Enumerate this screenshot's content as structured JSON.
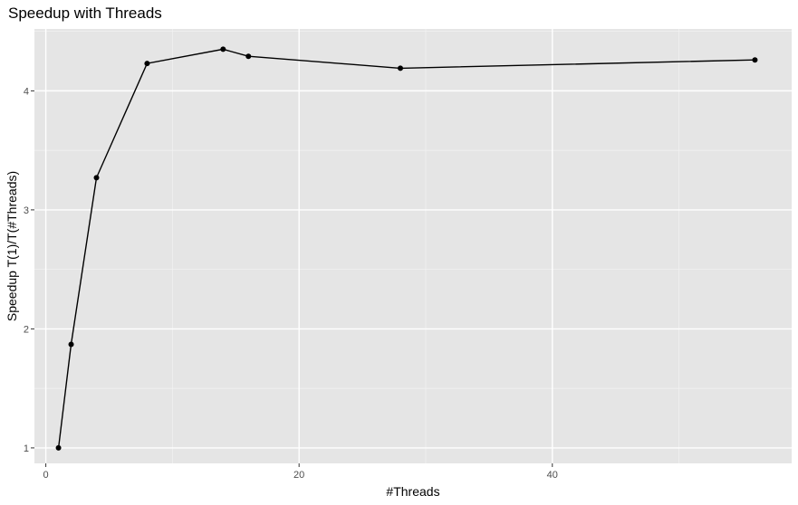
{
  "chart_data": {
    "type": "line",
    "title": "Speedup with Threads",
    "xlabel": "#Threads",
    "ylabel": "Speedup T(1)/T(#Threads)",
    "xlim": [
      -0.9,
      58.9
    ],
    "ylim": [
      0.87,
      4.52
    ],
    "x_ticks": [
      0,
      20,
      40
    ],
    "y_ticks": [
      1,
      2,
      3,
      4
    ],
    "grid": true,
    "series": [
      {
        "x": [
          1,
          2,
          4,
          8,
          14,
          16,
          28,
          56
        ],
        "y": [
          1.0,
          1.87,
          3.27,
          4.23,
          4.35,
          4.29,
          4.19,
          4.26
        ]
      }
    ],
    "colors": {
      "panel": "#e5e5e5",
      "grid_major": "#ffffff",
      "line": "#000000",
      "point": "#000000"
    }
  }
}
